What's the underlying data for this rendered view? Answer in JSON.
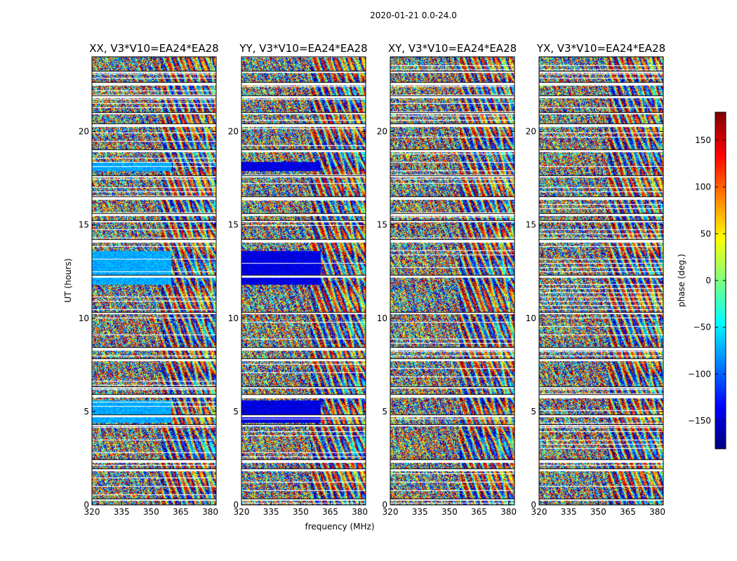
{
  "chart_data": {
    "type": "heatmap",
    "title": "2020-01-21 0.0-24.0",
    "xlabel": "frequency (MHz)",
    "ylabel": "UT (hours)",
    "xlim": [
      320,
      383
    ],
    "ylim": [
      0,
      24
    ],
    "x_ticks": [
      320,
      335,
      350,
      365,
      380
    ],
    "x_tick_labels": [
      "320",
      "335",
      "350",
      "365",
      "380"
    ],
    "y_ticks": [
      0,
      5,
      10,
      15,
      20
    ],
    "y_tick_labels": [
      "0",
      "5",
      "10",
      "15",
      "20"
    ],
    "panels": [
      {
        "title": "XX, V3*V10=EA24*EA28",
        "pol": "XX"
      },
      {
        "title": "YY, V3*V10=EA24*EA28",
        "pol": "YY"
      },
      {
        "title": "XY, V3*V10=EA24*EA28",
        "pol": "XY"
      },
      {
        "title": "YX, V3*V10=EA24*EA28",
        "pol": "YX"
      }
    ],
    "colorbar": {
      "label": "phase (deg.)",
      "colormap": "jet",
      "range": [
        -180,
        180
      ],
      "ticks": [
        -150,
        -100,
        -50,
        0,
        50,
        100,
        150
      ],
      "tick_labels": [
        "−150",
        "−100",
        "−50",
        "0",
        "50",
        "100",
        "150"
      ]
    },
    "data_gaps_hours": [
      0.3,
      1.9,
      2.4,
      4.3,
      4.8,
      5.9,
      6.3,
      7.8,
      8.4,
      10.3,
      12.3,
      14.2,
      15.2,
      15.6,
      16.5,
      17.6,
      19.0,
      20.4,
      21.0,
      21.9,
      22.6,
      23.2
    ]
  }
}
